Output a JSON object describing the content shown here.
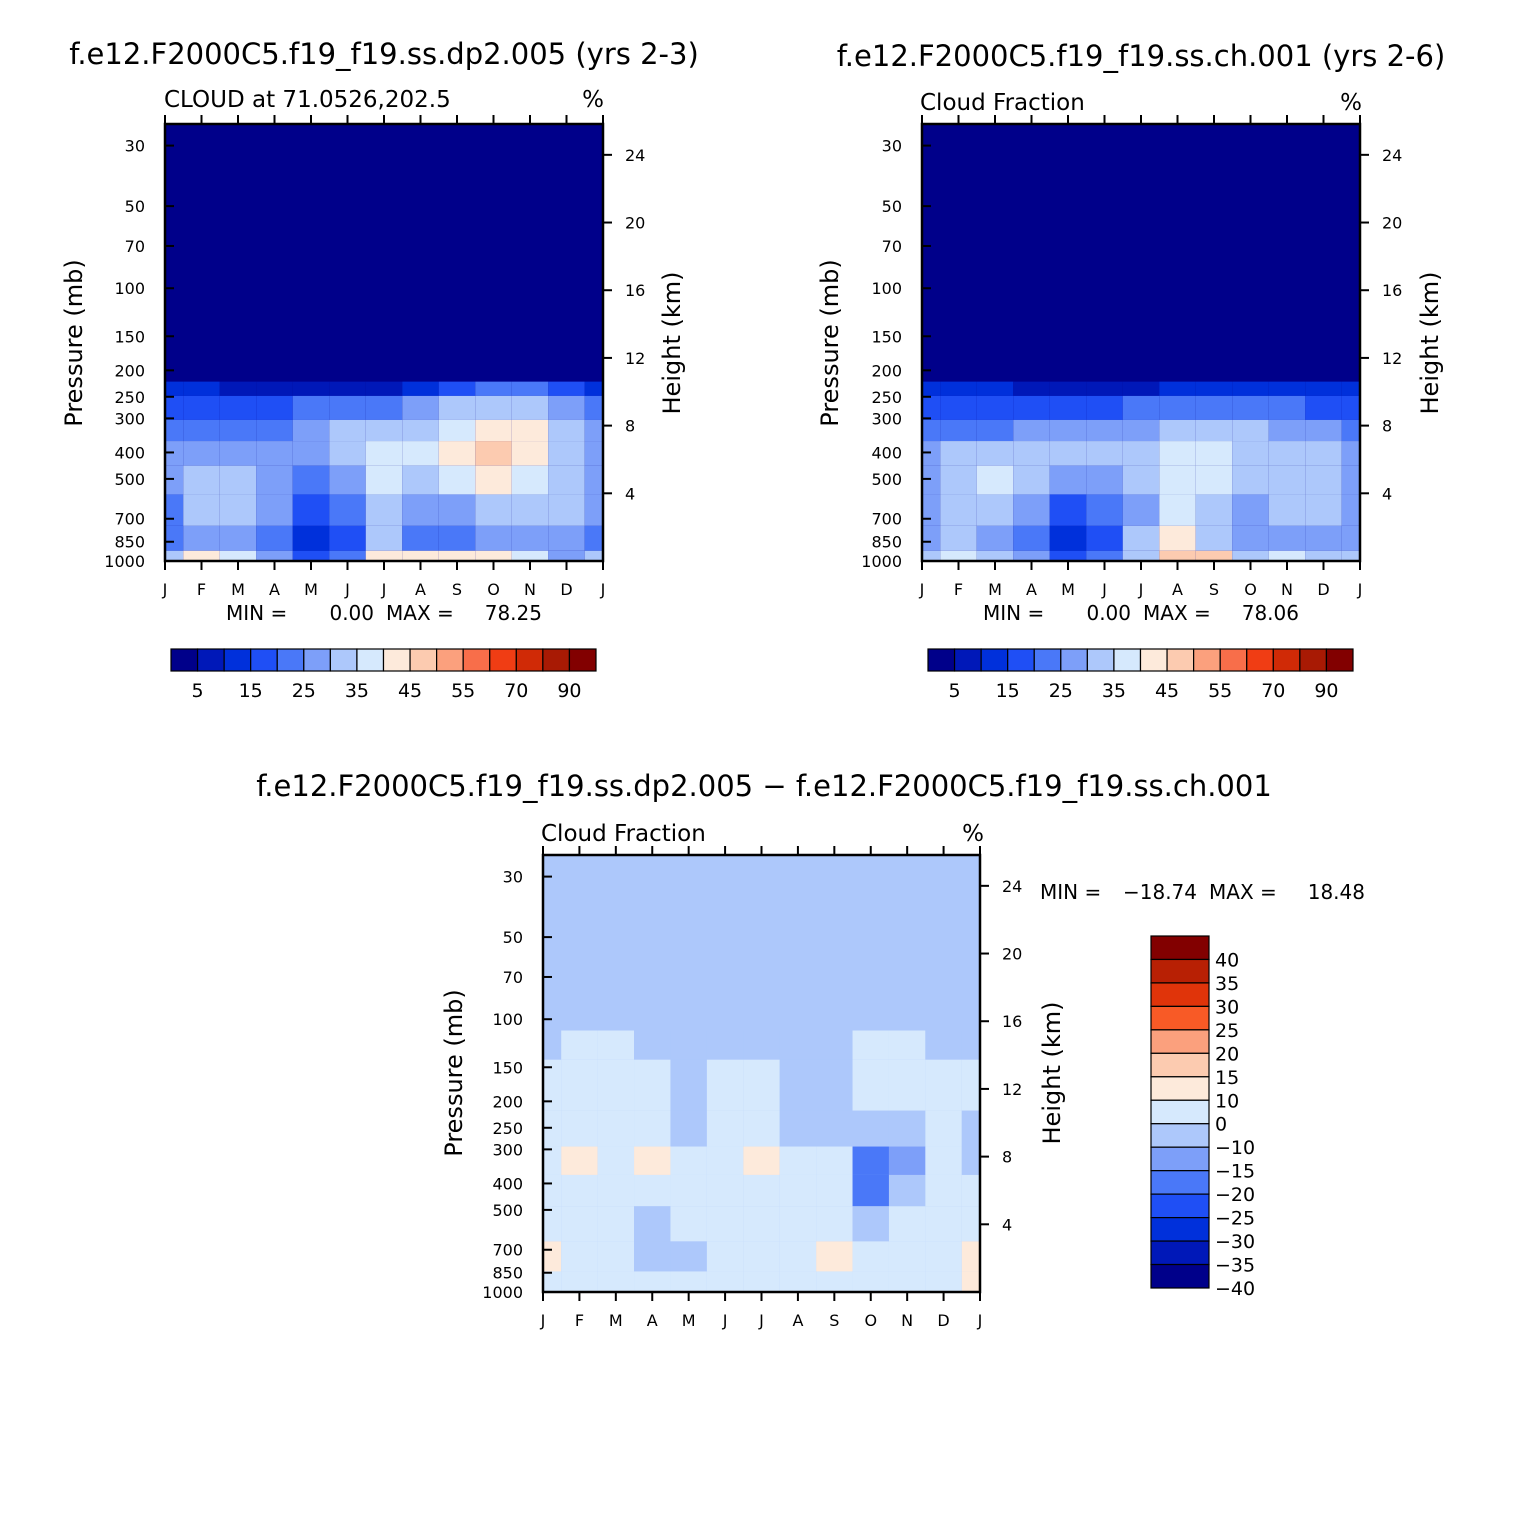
{
  "chart_data": [
    {
      "type": "heatmap",
      "title": "f.e12.F2000C5.f19_f19.ss.dp2.005 (yrs 2-3)",
      "subtitle_left": "CLOUD at 71.0526,202.5",
      "subtitle_right": "%",
      "ylabel": "Pressure (mb)",
      "ylabel_right": "Height (km)",
      "x_ticks": [
        "J",
        "F",
        "M",
        "A",
        "M",
        "J",
        "J",
        "A",
        "S",
        "O",
        "N",
        "D",
        "J"
      ],
      "y_ticks": [
        30,
        50,
        70,
        100,
        150,
        200,
        250,
        300,
        400,
        500,
        700,
        850,
        1000
      ],
      "y_ticks_right": [
        24,
        20,
        16,
        12,
        8,
        4
      ],
      "stats_min_label": "MIN =",
      "stats_min": "0.00",
      "stats_max_label": "MAX =",
      "stats_max": "78.25",
      "colorbar": {
        "orientation": "horizontal",
        "labels": [
          "5",
          "15",
          "25",
          "35",
          "45",
          "55",
          "70",
          "90"
        ],
        "colors": [
          "#00008a",
          "#0018b8",
          "#0030db",
          "#1f4ff5",
          "#4a78f8",
          "#7d9ff9",
          "#adc8fb",
          "#d6e9fd",
          "#fdeadb",
          "#fccbb0",
          "#fba07d",
          "#f86e4a",
          "#f03d14",
          "#d02a06",
          "#a81a04",
          "#820000"
        ]
      },
      "field": {
        "rows": [
          [
            2,
            2,
            1,
            1,
            1,
            1,
            1,
            2,
            3,
            4,
            4,
            3,
            2
          ],
          [
            3,
            3,
            3,
            3,
            4,
            4,
            4,
            5,
            6,
            6,
            6,
            5,
            4
          ],
          [
            4,
            4,
            4,
            4,
            5,
            6,
            6,
            6,
            7,
            8,
            8,
            6,
            5
          ],
          [
            5,
            5,
            5,
            5,
            5,
            6,
            7,
            7,
            8,
            9,
            8,
            6,
            5
          ],
          [
            5,
            6,
            6,
            5,
            4,
            5,
            7,
            6,
            7,
            8,
            7,
            6,
            5
          ],
          [
            4,
            6,
            6,
            5,
            3,
            4,
            6,
            5,
            5,
            6,
            6,
            6,
            5
          ],
          [
            4,
            5,
            5,
            4,
            2,
            3,
            6,
            4,
            4,
            5,
            5,
            5,
            4
          ],
          [
            6,
            8,
            7,
            5,
            3,
            4,
            8,
            8,
            8,
            8,
            7,
            5,
            6
          ]
        ],
        "pressures": [
          220,
          280,
          330,
          400,
          500,
          650,
          850,
          990
        ]
      }
    },
    {
      "type": "heatmap",
      "title": "f.e12.F2000C5.f19_f19.ss.ch.001 (yrs 2-6)",
      "subtitle_left": "Cloud Fraction",
      "subtitle_right": "%",
      "ylabel": "Pressure (mb)",
      "ylabel_right": "Height (km)",
      "x_ticks": [
        "J",
        "F",
        "M",
        "A",
        "M",
        "J",
        "J",
        "A",
        "S",
        "O",
        "N",
        "D",
        "J"
      ],
      "y_ticks": [
        30,
        50,
        70,
        100,
        150,
        200,
        250,
        300,
        400,
        500,
        700,
        850,
        1000
      ],
      "y_ticks_right": [
        24,
        20,
        16,
        12,
        8,
        4
      ],
      "stats_min_label": "MIN =",
      "stats_min": "0.00",
      "stats_max_label": "MAX =",
      "stats_max": "78.06",
      "colorbar": {
        "orientation": "horizontal",
        "labels": [
          "5",
          "15",
          "25",
          "35",
          "45",
          "55",
          "70",
          "90"
        ],
        "colors": [
          "#00008a",
          "#0018b8",
          "#0030db",
          "#1f4ff5",
          "#4a78f8",
          "#7d9ff9",
          "#adc8fb",
          "#d6e9fd",
          "#fdeadb",
          "#fccbb0",
          "#fba07d",
          "#f86e4a",
          "#f03d14",
          "#d02a06",
          "#a81a04",
          "#820000"
        ]
      },
      "field": {
        "rows": [
          [
            2,
            2,
            2,
            1,
            1,
            1,
            1,
            2,
            2,
            2,
            2,
            2,
            2
          ],
          [
            3,
            3,
            3,
            3,
            3,
            3,
            4,
            4,
            4,
            4,
            4,
            3,
            3
          ],
          [
            4,
            4,
            4,
            5,
            5,
            5,
            5,
            6,
            6,
            6,
            5,
            5,
            4
          ],
          [
            5,
            6,
            6,
            6,
            6,
            6,
            6,
            7,
            7,
            6,
            6,
            6,
            5
          ],
          [
            5,
            6,
            7,
            6,
            5,
            5,
            6,
            7,
            7,
            6,
            6,
            6,
            5
          ],
          [
            5,
            6,
            6,
            5,
            3,
            4,
            5,
            7,
            6,
            5,
            6,
            6,
            5
          ],
          [
            5,
            6,
            5,
            4,
            2,
            3,
            6,
            8,
            6,
            5,
            5,
            5,
            5
          ],
          [
            6,
            7,
            6,
            5,
            3,
            4,
            6,
            9,
            9,
            6,
            7,
            6,
            6
          ]
        ],
        "pressures": [
          220,
          280,
          330,
          400,
          500,
          650,
          850,
          990
        ]
      }
    },
    {
      "type": "heatmap",
      "title": "f.e12.F2000C5.f19_f19.ss.dp2.005 − f.e12.F2000C5.f19_f19.ss.ch.001",
      "subtitle_left": "Cloud Fraction",
      "subtitle_right": "%",
      "ylabel": "Pressure (mb)",
      "ylabel_right": "Height (km)",
      "x_ticks": [
        "J",
        "F",
        "M",
        "A",
        "M",
        "J",
        "J",
        "A",
        "S",
        "O",
        "N",
        "D",
        "J"
      ],
      "y_ticks": [
        30,
        50,
        70,
        100,
        150,
        200,
        250,
        300,
        400,
        500,
        700,
        850,
        1000
      ],
      "y_ticks_right": [
        24,
        20,
        16,
        12,
        8,
        4
      ],
      "stats_min_label": "MIN =",
      "stats_min": "−18.74",
      "stats_max_label": "MAX =",
      "stats_max": "18.48",
      "colorbar": {
        "orientation": "vertical",
        "labels": [
          "40",
          "35",
          "30",
          "25",
          "20",
          "15",
          "10",
          "0",
          "−10",
          "−15",
          "−20",
          "−25",
          "−30",
          "−35",
          "−40"
        ],
        "colors": [
          "#820000",
          "#b82004",
          "#e0340a",
          "#f85a26",
          "#fba07d",
          "#fccbb0",
          "#fdeadb",
          "#d6e9fd",
          "#adc8fb",
          "#7d9ff9",
          "#4a78f8",
          "#1f4ff5",
          "#0030db",
          "#0018b8",
          "#00008a"
        ]
      },
      "field": {
        "rows": [
          [
            8,
            7,
            7,
            8,
            8,
            8,
            8,
            8,
            8,
            7,
            7,
            8,
            8
          ],
          [
            7,
            7,
            7,
            7,
            8,
            7,
            7,
            8,
            8,
            7,
            7,
            7,
            7
          ],
          [
            7,
            7,
            7,
            7,
            8,
            7,
            7,
            8,
            8,
            8,
            8,
            7,
            8
          ],
          [
            7,
            6,
            7,
            6,
            7,
            7,
            6,
            7,
            7,
            10,
            9,
            7,
            8
          ],
          [
            7,
            7,
            7,
            7,
            7,
            7,
            7,
            7,
            7,
            10,
            8,
            7,
            7
          ],
          [
            7,
            7,
            7,
            8,
            7,
            7,
            7,
            7,
            7,
            8,
            7,
            7,
            7
          ],
          [
            6,
            7,
            7,
            8,
            8,
            7,
            7,
            7,
            6,
            7,
            7,
            7,
            6
          ],
          [
            7,
            7,
            7,
            7,
            7,
            7,
            7,
            7,
            7,
            7,
            7,
            7,
            6
          ]
        ],
        "pressures": [
          110,
          180,
          260,
          330,
          420,
          560,
          760,
          930
        ]
      }
    }
  ]
}
